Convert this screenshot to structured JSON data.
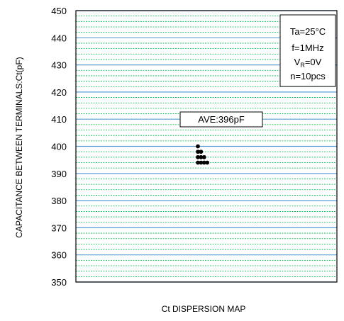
{
  "chart_data": {
    "type": "scatter",
    "title": "",
    "xlabel": "Ct DISPERSION MAP",
    "ylabel": "CAPACITANCE BETWEEN TERMINALS:Ct(pF)",
    "ylim": [
      350,
      450
    ],
    "yticks": [
      "350",
      "360",
      "370",
      "380",
      "390",
      "400",
      "410",
      "420",
      "430",
      "440",
      "450"
    ],
    "grid": "on",
    "points": [
      {
        "y": 400
      },
      {
        "y": 398
      },
      {
        "y": 398
      },
      {
        "y": 396
      },
      {
        "y": 396
      },
      {
        "y": 396
      },
      {
        "y": 394
      },
      {
        "y": 394
      },
      {
        "y": 394
      },
      {
        "y": 394
      }
    ],
    "annotation": "AVE:396pF",
    "conditions": {
      "ta": "Ta=25°C",
      "f": "f=1MHz",
      "vr_main": "V",
      "vr_sub": "R",
      "vr_rest": "=0V",
      "n": "n=10pcs"
    },
    "legend_position": "top-right",
    "colors": {
      "major_grid": "#5b9bd5",
      "minor_grid": "#00b050",
      "marker": "#000000",
      "frame": "#000000"
    }
  }
}
